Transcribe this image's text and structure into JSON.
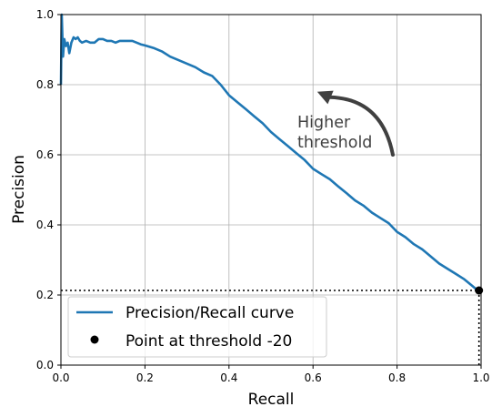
{
  "chart_data": {
    "type": "line",
    "xlabel": "Recall",
    "ylabel": "Precision",
    "xlim": [
      0,
      1
    ],
    "ylim": [
      0,
      1
    ],
    "xticks": [
      "0.0",
      "0.2",
      "0.4",
      "0.6",
      "0.8",
      "1.0"
    ],
    "yticks": [
      "0.0",
      "0.2",
      "0.4",
      "0.6",
      "0.8",
      "1.0"
    ],
    "grid": true,
    "legend_position": "lower-left",
    "series": [
      {
        "name": "Precision/Recall curve",
        "color": "#1f77b4",
        "x": [
          0.0,
          0.002,
          0.005,
          0.008,
          0.012,
          0.016,
          0.02,
          0.025,
          0.03,
          0.035,
          0.04,
          0.045,
          0.05,
          0.06,
          0.07,
          0.08,
          0.09,
          0.1,
          0.11,
          0.12,
          0.13,
          0.14,
          0.15,
          0.16,
          0.17,
          0.18,
          0.19,
          0.2,
          0.22,
          0.24,
          0.26,
          0.28,
          0.3,
          0.32,
          0.34,
          0.36,
          0.38,
          0.4,
          0.42,
          0.44,
          0.46,
          0.48,
          0.5,
          0.52,
          0.54,
          0.56,
          0.58,
          0.6,
          0.62,
          0.64,
          0.66,
          0.68,
          0.7,
          0.72,
          0.74,
          0.76,
          0.78,
          0.8,
          0.82,
          0.84,
          0.86,
          0.88,
          0.9,
          0.92,
          0.94,
          0.96,
          0.98,
          0.99
        ],
        "y": [
          0.8,
          1.0,
          0.88,
          0.93,
          0.91,
          0.92,
          0.89,
          0.92,
          0.935,
          0.93,
          0.935,
          0.925,
          0.92,
          0.925,
          0.92,
          0.92,
          0.93,
          0.93,
          0.925,
          0.925,
          0.92,
          0.925,
          0.925,
          0.925,
          0.925,
          0.92,
          0.915,
          0.912,
          0.905,
          0.895,
          0.88,
          0.87,
          0.86,
          0.85,
          0.835,
          0.825,
          0.8,
          0.77,
          0.75,
          0.73,
          0.71,
          0.69,
          0.665,
          0.645,
          0.625,
          0.605,
          0.585,
          0.56,
          0.545,
          0.53,
          0.51,
          0.49,
          0.47,
          0.455,
          0.435,
          0.42,
          0.405,
          0.38,
          0.365,
          0.345,
          0.33,
          0.31,
          0.29,
          0.275,
          0.26,
          0.245,
          0.225,
          0.215
        ]
      },
      {
        "name": "Point at threshold -20",
        "color": "#000000",
        "x": [
          0.995
        ],
        "y": [
          0.213
        ]
      }
    ],
    "reference_lines": {
      "horizontal_y": 0.213,
      "vertical_x": 0.995,
      "style": "dotted"
    },
    "annotation": {
      "lines": [
        "Higher",
        "threshold"
      ],
      "arrow_from": [
        0.79,
        0.6
      ],
      "arrow_to": [
        0.61,
        0.78
      ],
      "color": "#404040"
    }
  }
}
